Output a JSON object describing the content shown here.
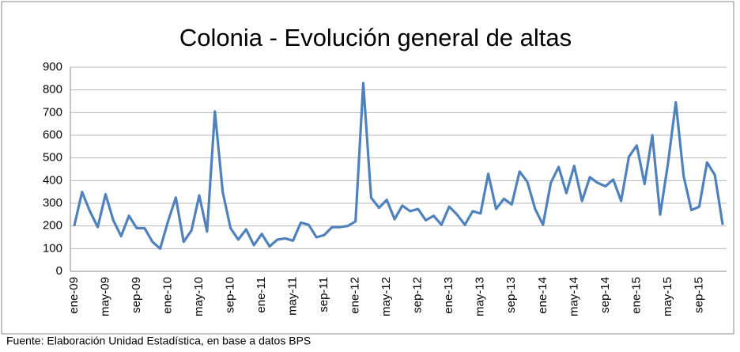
{
  "chart_data": {
    "type": "line",
    "title": "Colonia - Evolución general de altas",
    "source": "Fuente: Elaboración Unidad Estadística, en base a datos BPS",
    "categories": [
      "ene-09",
      null,
      null,
      null,
      "may-09",
      null,
      null,
      null,
      "sep-09",
      null,
      null,
      null,
      "ene-10",
      null,
      null,
      null,
      "may-10",
      null,
      null,
      null,
      "sep-10",
      null,
      null,
      null,
      "ene-11",
      null,
      null,
      null,
      "may-11",
      null,
      null,
      null,
      "sep-11",
      null,
      null,
      null,
      "ene-12",
      null,
      null,
      null,
      "may-12",
      null,
      null,
      null,
      "sep-12",
      null,
      null,
      null,
      "ene-13",
      null,
      null,
      null,
      "may-13",
      null,
      null,
      null,
      "sep-13",
      null,
      null,
      null,
      "ene-14",
      null,
      null,
      null,
      "may-14",
      null,
      null,
      null,
      "sep-14",
      null,
      null,
      null,
      "ene-15",
      null,
      null,
      null,
      "may-15",
      null,
      null,
      null,
      "sep-15",
      null,
      null,
      null
    ],
    "values": [
      200,
      350,
      265,
      195,
      340,
      225,
      155,
      245,
      190,
      190,
      130,
      100,
      220,
      325,
      130,
      180,
      335,
      175,
      705,
      350,
      190,
      140,
      185,
      115,
      165,
      110,
      140,
      145,
      135,
      215,
      205,
      150,
      160,
      195,
      195,
      200,
      220,
      830,
      325,
      280,
      315,
      230,
      290,
      265,
      275,
      225,
      245,
      205,
      285,
      250,
      205,
      265,
      255,
      430,
      275,
      320,
      295,
      440,
      395,
      275,
      205,
      390,
      460,
      345,
      465,
      310,
      415,
      390,
      375,
      405,
      310,
      505,
      555,
      385,
      600,
      250,
      475,
      745,
      420,
      270,
      285,
      480,
      425,
      205
    ],
    "color": "#4f81bd",
    "ylim": [
      0,
      900
    ],
    "yticks": [
      0,
      100,
      200,
      300,
      400,
      500,
      600,
      700,
      800,
      900
    ],
    "grid": true
  }
}
